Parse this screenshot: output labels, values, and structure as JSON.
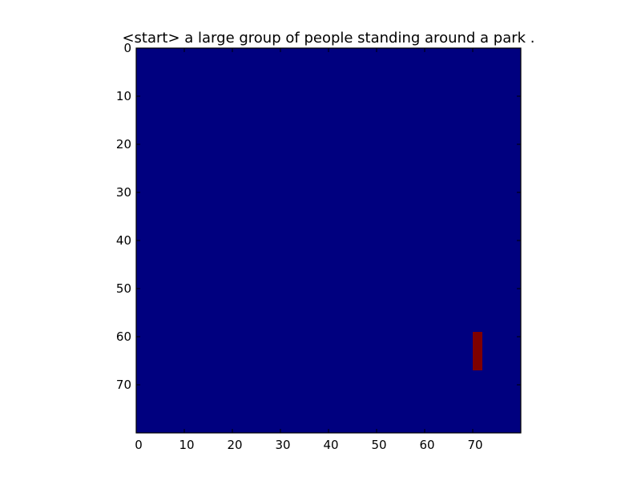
{
  "chart_data": {
    "type": "heatmap",
    "title": "<start> a large group of people standing around a park .",
    "xlabel": "",
    "ylabel": "",
    "shape": [
      80,
      80
    ],
    "xlim": [
      0,
      80
    ],
    "ylim": [
      80,
      0
    ],
    "x_ticks": [
      "0",
      "10",
      "20",
      "30",
      "40",
      "50",
      "60",
      "70"
    ],
    "y_ticks": [
      "0",
      "10",
      "20",
      "30",
      "40",
      "50",
      "60",
      "70"
    ],
    "background_value": 0,
    "colormap": "jet",
    "colors": {
      "low": "#00007f",
      "high": "#7f0000"
    },
    "grid": false,
    "hot_regions": [
      {
        "x": [
          70,
          72
        ],
        "y": [
          59,
          67
        ],
        "value": 1
      }
    ]
  }
}
